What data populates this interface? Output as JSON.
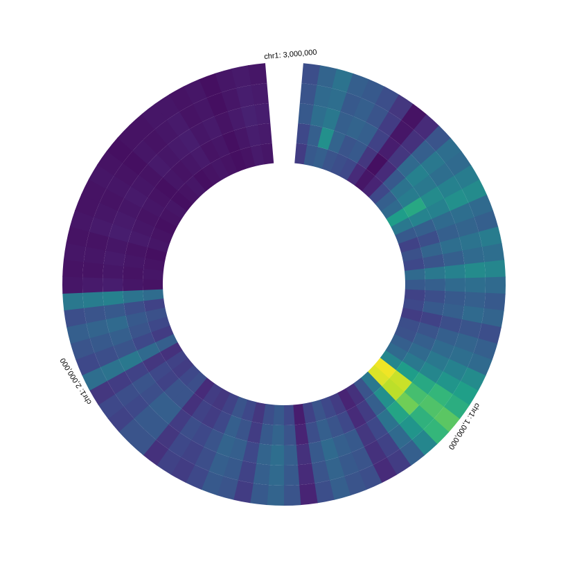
{
  "chart_data": {
    "type": "heatmap",
    "layout": "circular",
    "title": "",
    "xlabel": "",
    "ylabel": "",
    "x_range": [
      0,
      3000000
    ],
    "grid": false,
    "legend": "none",
    "colormap": [
      "#440154",
      "#482878",
      "#3e4989",
      "#31688e",
      "#26828e",
      "#1f9e89",
      "#35b779",
      "#6ece58",
      "#b5de2b",
      "#fde725"
    ],
    "tick_labels": [
      {
        "position": 1000000,
        "label": "chr1: 1,000,000"
      },
      {
        "position": 2000000,
        "label": "chr1: 2,000,000"
      },
      {
        "position": 3000000,
        "label": "chr1: 3,000,000"
      }
    ],
    "rows": 5,
    "values": [
      [
        0.18,
        0.28,
        0.3,
        0.26,
        0.24,
        0.22,
        0.12,
        0.06,
        0.1,
        0.22,
        0.3,
        0.34,
        0.55,
        0.4,
        0.28,
        0.2,
        0.25,
        0.22,
        0.34,
        0.28,
        0.2,
        0.22,
        0.18,
        0.24,
        0.25,
        0.3,
        0.34,
        0.46,
        0.98,
        0.95,
        0.4,
        0.26,
        0.14,
        0.1,
        0.18,
        0.22,
        0.26,
        0.2,
        0.08,
        0.22,
        0.28,
        0.24,
        0.16,
        0.22,
        0.26,
        0.2,
        0.16,
        0.18,
        0.12,
        0.24,
        0.22,
        0.18,
        0.2,
        0.14,
        0.3,
        0.18,
        0.22,
        0.25,
        0.2,
        0.35,
        0.05,
        0.06,
        0.05,
        0.04,
        0.06,
        0.05,
        0.04,
        0.05,
        0.06,
        0.04,
        0.05,
        0.06,
        0.04,
        0.05,
        0.06,
        0.05,
        0.04,
        0.05,
        0.07,
        0.06
      ],
      [
        0.22,
        0.3,
        0.5,
        0.32,
        0.26,
        0.28,
        0.16,
        0.04,
        0.12,
        0.28,
        0.38,
        0.42,
        0.6,
        0.45,
        0.3,
        0.24,
        0.32,
        0.26,
        0.4,
        0.3,
        0.24,
        0.28,
        0.2,
        0.26,
        0.3,
        0.34,
        0.4,
        0.55,
        0.92,
        0.9,
        0.5,
        0.3,
        0.18,
        0.12,
        0.22,
        0.26,
        0.3,
        0.24,
        0.1,
        0.26,
        0.32,
        0.28,
        0.18,
        0.26,
        0.3,
        0.22,
        0.18,
        0.2,
        0.14,
        0.26,
        0.26,
        0.2,
        0.22,
        0.16,
        0.34,
        0.22,
        0.26,
        0.28,
        0.24,
        0.38,
        0.06,
        0.05,
        0.06,
        0.05,
        0.07,
        0.06,
        0.05,
        0.06,
        0.05,
        0.04,
        0.06,
        0.05,
        0.06,
        0.07,
        0.05,
        0.06,
        0.04,
        0.06,
        0.08,
        0.07
      ],
      [
        0.28,
        0.36,
        0.4,
        0.3,
        0.32,
        0.3,
        0.2,
        0.08,
        0.16,
        0.34,
        0.44,
        0.4,
        0.48,
        0.44,
        0.34,
        0.3,
        0.36,
        0.3,
        0.44,
        0.34,
        0.28,
        0.3,
        0.24,
        0.3,
        0.34,
        0.4,
        0.46,
        0.6,
        0.7,
        0.78,
        0.58,
        0.38,
        0.22,
        0.16,
        0.28,
        0.3,
        0.34,
        0.28,
        0.14,
        0.3,
        0.36,
        0.32,
        0.22,
        0.3,
        0.32,
        0.26,
        0.22,
        0.24,
        0.18,
        0.3,
        0.3,
        0.24,
        0.26,
        0.2,
        0.4,
        0.26,
        0.3,
        0.34,
        0.28,
        0.44,
        0.08,
        0.06,
        0.07,
        0.06,
        0.08,
        0.07,
        0.06,
        0.07,
        0.06,
        0.05,
        0.07,
        0.06,
        0.07,
        0.08,
        0.06,
        0.07,
        0.05,
        0.07,
        0.09,
        0.08
      ],
      [
        0.26,
        0.34,
        0.36,
        0.28,
        0.3,
        0.26,
        0.18,
        0.06,
        0.14,
        0.3,
        0.4,
        0.36,
        0.44,
        0.5,
        0.36,
        0.32,
        0.38,
        0.34,
        0.48,
        0.36,
        0.3,
        0.34,
        0.26,
        0.32,
        0.36,
        0.44,
        0.52,
        0.66,
        0.72,
        0.64,
        0.52,
        0.34,
        0.2,
        0.14,
        0.26,
        0.28,
        0.32,
        0.26,
        0.12,
        0.28,
        0.34,
        0.3,
        0.2,
        0.28,
        0.3,
        0.24,
        0.2,
        0.22,
        0.16,
        0.28,
        0.28,
        0.22,
        0.24,
        0.18,
        0.38,
        0.24,
        0.28,
        0.32,
        0.26,
        0.42,
        0.07,
        0.05,
        0.06,
        0.05,
        0.07,
        0.06,
        0.05,
        0.06,
        0.05,
        0.04,
        0.06,
        0.05,
        0.06,
        0.07,
        0.05,
        0.06,
        0.04,
        0.06,
        0.08,
        0.07
      ],
      [
        0.24,
        0.32,
        0.38,
        0.3,
        0.28,
        0.24,
        0.16,
        0.05,
        0.12,
        0.26,
        0.36,
        0.34,
        0.42,
        0.48,
        0.34,
        0.3,
        0.42,
        0.36,
        0.46,
        0.34,
        0.28,
        0.32,
        0.24,
        0.3,
        0.34,
        0.48,
        0.56,
        0.62,
        0.74,
        0.66,
        0.46,
        0.3,
        0.18,
        0.12,
        0.24,
        0.26,
        0.3,
        0.24,
        0.1,
        0.26,
        0.32,
        0.28,
        0.18,
        0.26,
        0.28,
        0.22,
        0.18,
        0.2,
        0.14,
        0.26,
        0.26,
        0.2,
        0.22,
        0.16,
        0.36,
        0.22,
        0.26,
        0.3,
        0.24,
        0.4,
        0.06,
        0.05,
        0.06,
        0.05,
        0.06,
        0.05,
        0.05,
        0.06,
        0.05,
        0.04,
        0.05,
        0.05,
        0.06,
        0.06,
        0.05,
        0.06,
        0.04,
        0.06,
        0.07,
        0.06
      ]
    ]
  }
}
